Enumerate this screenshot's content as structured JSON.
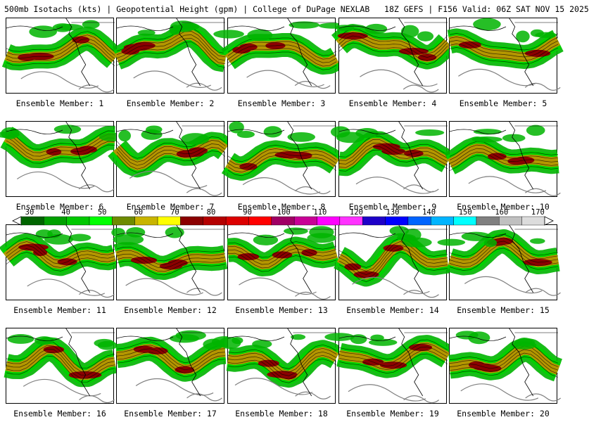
{
  "header": {
    "title": "500mb Isotachs (kts) | Geopotential Height (gpm) | College of DuPage NEXLAB   18Z GEFS | F156 Valid: 06Z SAT NOV 15 2025"
  },
  "panels": [
    {
      "caption": "Ensemble Member: 1"
    },
    {
      "caption": "Ensemble Member: 2"
    },
    {
      "caption": "Ensemble Member: 3"
    },
    {
      "caption": "Ensemble Member: 4"
    },
    {
      "caption": "Ensemble Member: 5"
    },
    {
      "caption": "Ensemble Member: 6"
    },
    {
      "caption": "Ensemble Member: 7"
    },
    {
      "caption": "Ensemble Member: 8"
    },
    {
      "caption": "Ensemble Member: 9"
    },
    {
      "caption": "Ensemble Member: 10"
    },
    {
      "caption": "Ensemble Member: 11"
    },
    {
      "caption": "Ensemble Member: 12"
    },
    {
      "caption": "Ensemble Member: 13"
    },
    {
      "caption": "Ensemble Member: 14"
    },
    {
      "caption": "Ensemble Member: 15"
    },
    {
      "caption": "Ensemble Member: 16"
    },
    {
      "caption": "Ensemble Member: 17"
    },
    {
      "caption": "Ensemble Member: 18"
    },
    {
      "caption": "Ensemble Member: 19"
    },
    {
      "caption": "Ensemble Member: 20"
    }
  ],
  "colorbar": {
    "labels": [
      "30",
      "40",
      "50",
      "60",
      "70",
      "80",
      "90",
      "100",
      "110",
      "120",
      "130",
      "140",
      "150",
      "160",
      "170"
    ],
    "colors": [
      "#006400",
      "#00a000",
      "#00c800",
      "#00ff00",
      "#6e8b00",
      "#c8b400",
      "#ffff00",
      "#8b0000",
      "#b40000",
      "#dc0000",
      "#ff0000",
      "#a00064",
      "#c80096",
      "#ff00ff",
      "#ff32ff",
      "#1e00c8",
      "#0000ff",
      "#0064ff",
      "#00b4ff",
      "#00ffff",
      "#808080",
      "#c0c0c0",
      "#dcdcdc"
    ]
  },
  "style": {
    "jet_core": "#8b0000",
    "jet_mid": "#b49600",
    "jet_outer": "#00b400",
    "contour": "#808080"
  }
}
